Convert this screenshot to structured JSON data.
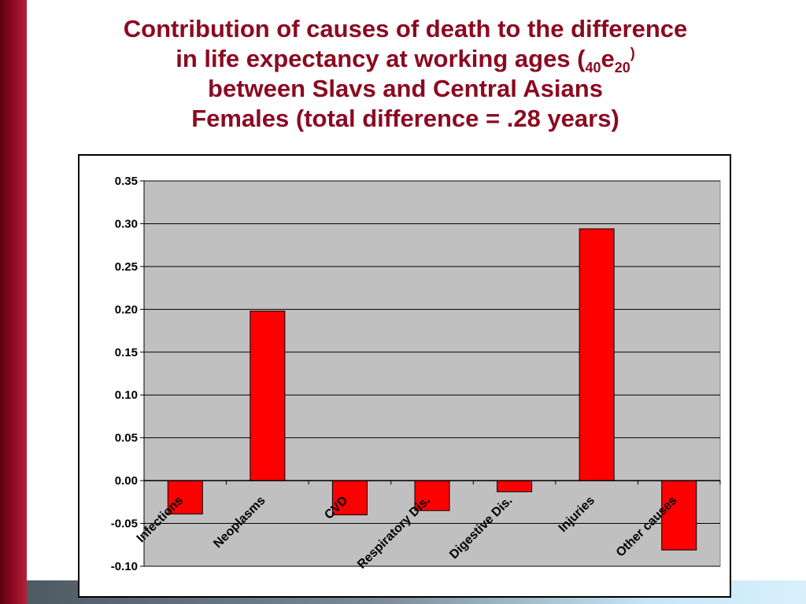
{
  "title": {
    "line1": "Contribution of causes of death to the difference",
    "line2_pre": "in life expectancy at working ages (",
    "line2_sub1": "40",
    "line2_e": "e",
    "line2_sub2": "20",
    "line2_sup": ")",
    "line3": "between Slavs and Central Asians",
    "line4": "Females (total difference = .28 years)"
  },
  "colors": {
    "title": "#8b0a21",
    "bar_fill": "#ff0000",
    "plot_bg": "#c0c0c0"
  },
  "chart_data": {
    "type": "bar",
    "categories": [
      "Infections",
      "Neoplasms",
      "CVD",
      "Respiratory Dis.",
      "Digestive Dis.",
      "Injuries",
      "Other causes"
    ],
    "values": [
      -0.039,
      0.198,
      -0.04,
      -0.035,
      -0.013,
      0.294,
      -0.081
    ],
    "ylim": [
      -0.1,
      0.35
    ],
    "yticks": [
      "-0.10",
      "-0.05",
      "0.00",
      "0.05",
      "0.10",
      "0.15",
      "0.20",
      "0.25",
      "0.30",
      "0.35"
    ],
    "grid": true,
    "legend": "none"
  }
}
